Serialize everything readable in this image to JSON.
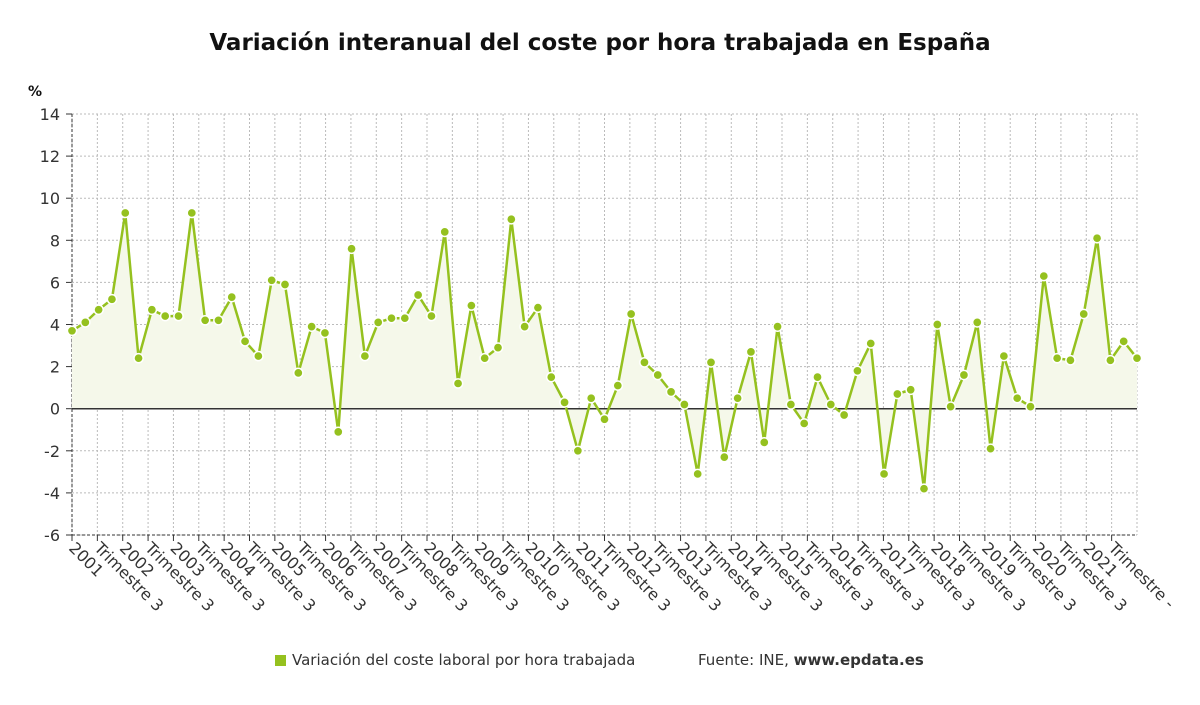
{
  "colors": {
    "series": "#95c11f",
    "fill": "#f5f8ea",
    "grid": "#bbbbbb",
    "zero": "#333333"
  },
  "chart_data": {
    "type": "line",
    "title": "Variación interanual del coste por hora trabajada en España",
    "ylabel": "%",
    "ylim": [
      -6,
      14
    ],
    "yticks": [
      -6,
      -4,
      -2,
      0,
      2,
      4,
      6,
      8,
      10,
      12,
      14
    ],
    "grid": true,
    "legend_placement": "bottom",
    "x_tick_labels": [
      "2001",
      "Trimestre 3",
      "2002",
      "Trimestre 3",
      "2003",
      "Trimestre 3",
      "2004",
      "Trimestre 3",
      "2005",
      "Trimestre 3",
      "2006",
      "Trimestre 3",
      "2007",
      "Trimestre 3",
      "2008",
      "Trimestre 3",
      "2009",
      "Trimestre 3",
      "2010",
      "Trimestre 3",
      "2011",
      "Trimestre 3",
      "2012",
      "Trimestre 3",
      "2013",
      "Trimestre 3",
      "2014",
      "Trimestre 3",
      "2015",
      "Trimestre 3",
      "2016",
      "Trimestre 3",
      "2017",
      "Trimestre 3",
      "2018",
      "Trimestre 3",
      "2019",
      "Trimestre 3",
      "2020",
      "Trimestre 3",
      "2021",
      "Trimestre -"
    ],
    "series": [
      {
        "name": "Variación del coste laboral por hora trabajada",
        "values": [
          3.7,
          4.1,
          4.7,
          5.2,
          9.3,
          2.4,
          4.7,
          4.4,
          4.4,
          9.3,
          4.2,
          4.2,
          5.3,
          3.2,
          2.5,
          6.1,
          5.9,
          1.7,
          3.9,
          3.6,
          -1.1,
          7.6,
          2.5,
          4.1,
          4.3,
          4.3,
          5.4,
          4.4,
          8.4,
          1.2,
          4.9,
          2.4,
          2.9,
          9.0,
          3.9,
          4.8,
          1.5,
          0.3,
          -2.0,
          0.5,
          -0.5,
          1.1,
          4.5,
          2.2,
          1.6,
          0.8,
          0.2,
          -3.1,
          2.2,
          -2.3,
          0.5,
          2.7,
          -1.6,
          3.9,
          0.2,
          -0.7,
          1.5,
          0.2,
          -0.3,
          1.8,
          3.1,
          -3.1,
          0.7,
          0.9,
          -3.8,
          4.0,
          0.1,
          1.6,
          4.1,
          -1.9,
          2.5,
          0.5,
          0.1,
          6.3,
          2.4,
          2.3,
          4.5,
          8.1,
          2.3,
          3.2,
          2.4
        ]
      }
    ]
  },
  "legend": {
    "label": "Variación del coste laboral por hora trabajada"
  },
  "source": {
    "prefix": "Fuente: INE, ",
    "site": "www.epdata.es"
  }
}
